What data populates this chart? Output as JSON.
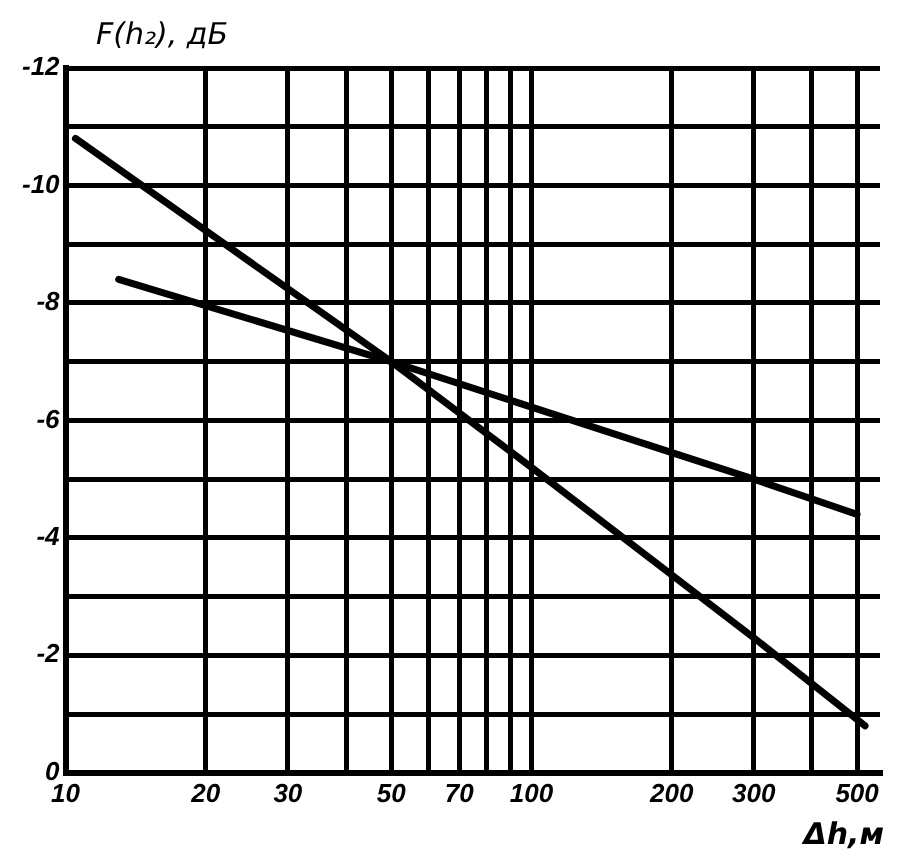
{
  "chart_data": {
    "type": "line",
    "xlabel": "Δh,м",
    "ylabel": "F(h₂), дБ",
    "log": "x",
    "grid": true,
    "legend": false,
    "marker": "none",
    "line_style": "solid",
    "xlim": [
      10,
      560
    ],
    "ylim": [
      0,
      -12
    ],
    "xticks": [
      10,
      20,
      30,
      {
        "value": 40,
        "label": null
      },
      50,
      {
        "value": 60,
        "label": null
      },
      70,
      {
        "value": 80,
        "label": null
      },
      {
        "value": 90,
        "label": null
      },
      100,
      200,
      300,
      {
        "value": 400,
        "label": null
      },
      500
    ],
    "yticks": [
      0,
      {
        "value": -1,
        "label": null
      },
      -2,
      {
        "value": -3,
        "label": null
      },
      -4,
      {
        "value": -5,
        "label": null
      },
      -6,
      {
        "value": -7,
        "label": null
      },
      -8,
      {
        "value": -9,
        "label": null
      },
      -10,
      {
        "value": -11,
        "label": null
      },
      -12
    ],
    "series": [
      {
        "color": "#000000",
        "x": [
          10.5,
          50,
          100,
          300,
          520
        ],
        "values": [
          -10.8,
          -7,
          -5.2,
          -2.3,
          -0.8
        ]
      },
      {
        "color": "#000000",
        "x": [
          13,
          50,
          300,
          500
        ],
        "values": [
          -8.4,
          -7,
          -5,
          -4.4
        ]
      }
    ]
  }
}
